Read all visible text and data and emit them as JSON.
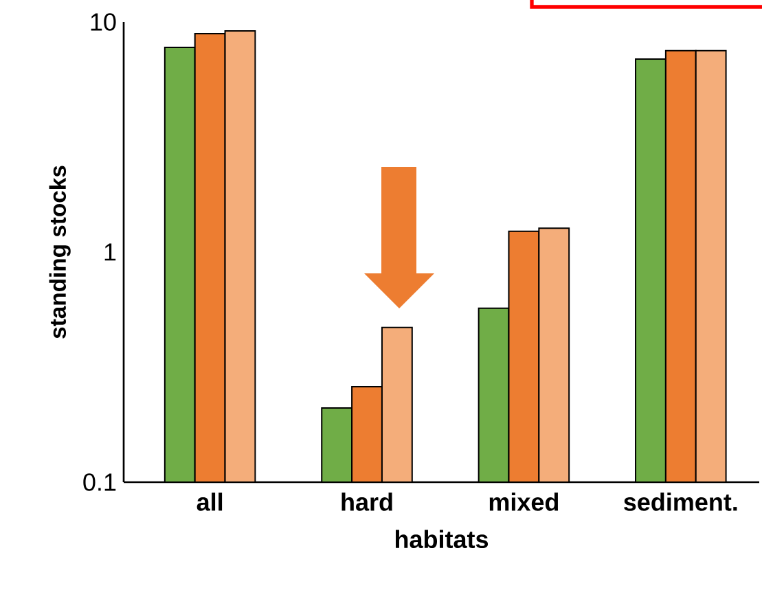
{
  "chart_data": {
    "type": "bar",
    "xlabel": "habitats",
    "ylabel": "standing stocks",
    "categories": [
      "all",
      "hard",
      "mixed",
      "sediment."
    ],
    "series": [
      {
        "color": "#70ad47",
        "values": [
          7.75,
          0.21,
          0.57,
          6.9
        ]
      },
      {
        "color": "#ed7d31",
        "values": [
          8.9,
          0.26,
          1.23,
          7.5
        ]
      },
      {
        "color": "#f4ad7a",
        "values": [
          9.15,
          0.47,
          1.27,
          7.5
        ]
      }
    ],
    "log": "y",
    "ylim": [
      0.1,
      10
    ],
    "yticks": [
      0.1,
      1,
      10
    ],
    "grid": false
  }
}
